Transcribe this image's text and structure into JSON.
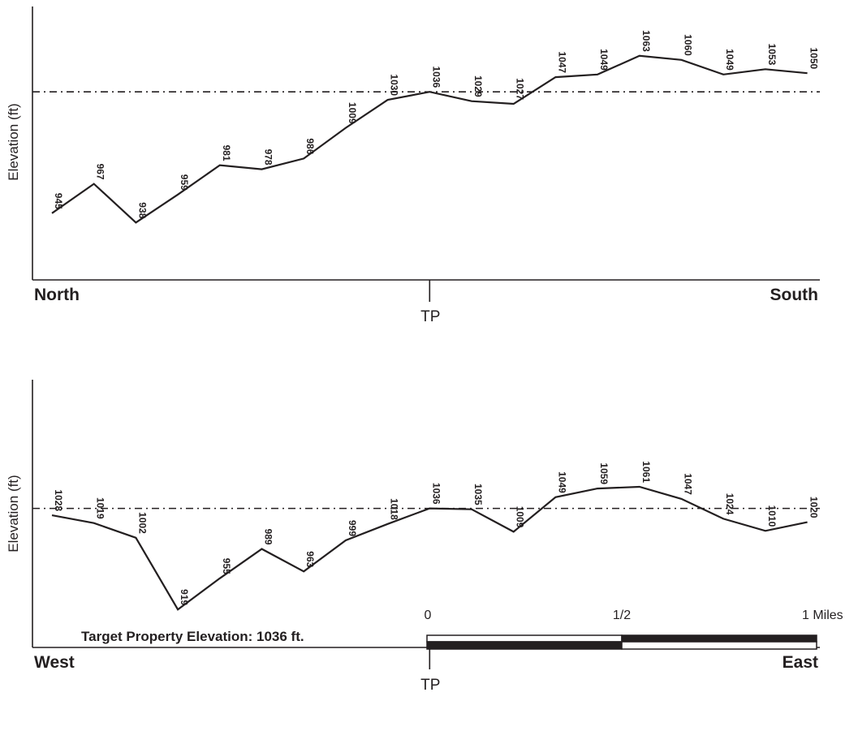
{
  "chart_data": [
    {
      "type": "line",
      "name": "north-south-profile",
      "ylabel": "Elevation (ft)",
      "start_label": "North",
      "end_label": "South",
      "center_label": "TP",
      "reference_elevation": 1036,
      "ylim": [
        895,
        1100
      ],
      "values": [
        945,
        967,
        938,
        959,
        981,
        978,
        986,
        1009,
        1030,
        1036,
        1029,
        1027,
        1047,
        1049,
        1063,
        1060,
        1049,
        1053,
        1050
      ]
    },
    {
      "type": "line",
      "name": "west-east-profile",
      "ylabel": "Elevation (ft)",
      "start_label": "West",
      "end_label": "East",
      "center_label": "TP",
      "reference_elevation": 1036,
      "ylim": [
        875,
        1185
      ],
      "values": [
        1028,
        1019,
        1002,
        919,
        955,
        989,
        963,
        999,
        1018,
        1036,
        1035,
        1009,
        1049,
        1059,
        1061,
        1047,
        1024,
        1010,
        1020
      ]
    }
  ],
  "scale_bar": {
    "labels": [
      "0",
      "1/2",
      "1 Miles"
    ],
    "split_fraction": 0.5
  },
  "target_property": {
    "label": "Target Property Elevation: 1036 ft."
  },
  "colors": {
    "ink": "#231f20"
  }
}
